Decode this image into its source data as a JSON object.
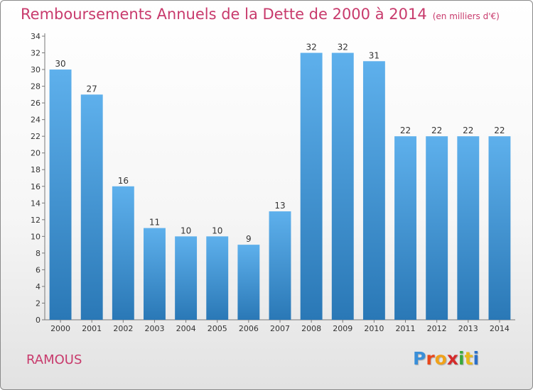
{
  "header": {
    "title": "Remboursements Annuels de la Dette de 2000 à 2014",
    "unit": "(en milliers d'€)"
  },
  "footer": {
    "commune": "RAMOUS",
    "logo": "Proxiti"
  },
  "colors": {
    "title": "#c83a6c",
    "bar_top": "#5eb0ec",
    "bar_bottom": "#2a78b6"
  },
  "chart_data": {
    "type": "bar",
    "title": "Remboursements Annuels de la Dette de 2000 à 2014",
    "xlabel": "",
    "ylabel": "",
    "categories": [
      "2000",
      "2001",
      "2002",
      "2003",
      "2004",
      "2005",
      "2006",
      "2007",
      "2008",
      "2009",
      "2010",
      "2011",
      "2012",
      "2013",
      "2014"
    ],
    "values": [
      30,
      27,
      16,
      11,
      10,
      10,
      9,
      13,
      32,
      32,
      31,
      22,
      22,
      22,
      22
    ],
    "ylim": [
      0,
      34
    ],
    "yticks": [
      0,
      2,
      4,
      6,
      8,
      10,
      12,
      14,
      16,
      18,
      20,
      22,
      24,
      26,
      28,
      30,
      32,
      34
    ],
    "grid": false,
    "legend": "none"
  }
}
